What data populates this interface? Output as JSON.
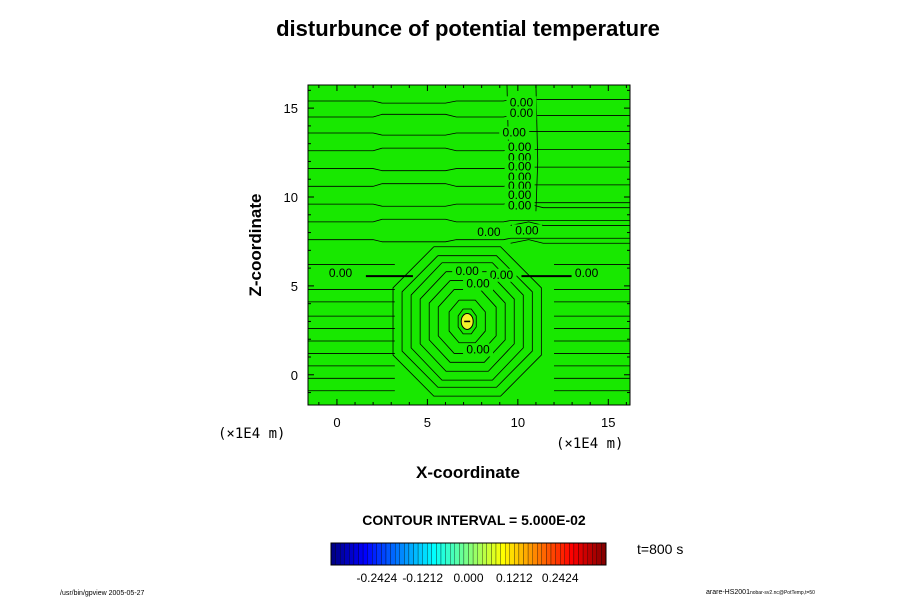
{
  "chart_data": {
    "type": "contour",
    "title": "disturbunce of potential temperature",
    "xlabel": "X-coordinate",
    "ylabel": "Z-coordinate",
    "x_units": "(×1E4 m)",
    "y_units": "(×1E4 m)",
    "xlim": [
      -1.6,
      16.2
    ],
    "ylim": [
      -1.7,
      16.3
    ],
    "x_ticks": [
      0,
      5,
      10,
      15
    ],
    "y_ticks": [
      0,
      5,
      10,
      15
    ],
    "contour_interval_text": "CONTOUR INTERVAL = 5.000E-02",
    "contour_labels": [
      {
        "text": "0.00",
        "x": 10.2,
        "y": 15.1
      },
      {
        "text": "0.00",
        "x": 10.2,
        "y": 14.5
      },
      {
        "text": "0.00",
        "x": 9.8,
        "y": 13.4
      },
      {
        "text": "0.00",
        "x": 10.1,
        "y": 12.6
      },
      {
        "text": "0.00",
        "x": 10.1,
        "y": 12.0
      },
      {
        "text": "0.00",
        "x": 10.1,
        "y": 11.5
      },
      {
        "text": "0.00",
        "x": 10.1,
        "y": 10.9
      },
      {
        "text": "0.00",
        "x": 10.1,
        "y": 10.4
      },
      {
        "text": "0.00",
        "x": 10.1,
        "y": 9.9
      },
      {
        "text": "0.00",
        "x": 10.1,
        "y": 9.3
      },
      {
        "text": "0.00",
        "x": 8.4,
        "y": 7.8
      },
      {
        "text": "0.00",
        "x": 10.5,
        "y": 7.9
      },
      {
        "text": "0.00",
        "x": 0.2,
        "y": 5.5
      },
      {
        "text": "0.00",
        "x": 13.8,
        "y": 5.5
      },
      {
        "text": "0.00",
        "x": 7.2,
        "y": 5.6
      },
      {
        "text": "0.00",
        "x": 9.1,
        "y": 5.4
      },
      {
        "text": "0.00",
        "x": 7.8,
        "y": 4.9
      },
      {
        "text": "0.00",
        "x": 7.8,
        "y": 1.2
      }
    ],
    "colorbar": {
      "tick_labels": [
        "-0.2424",
        "-0.1212",
        "0.000",
        "0.1212",
        "0.2424"
      ],
      "range": [
        -0.3636,
        0.3636
      ],
      "colormap": "jet"
    },
    "time_label": "t=800 s",
    "background_color": "#18e800"
  },
  "footer": {
    "left": "/usr/bin/gpview 2005-05-27",
    "right_main": "arare-HS2001",
    "right_sub": "nobar-sv2.nc@PotTemp,t=50"
  }
}
